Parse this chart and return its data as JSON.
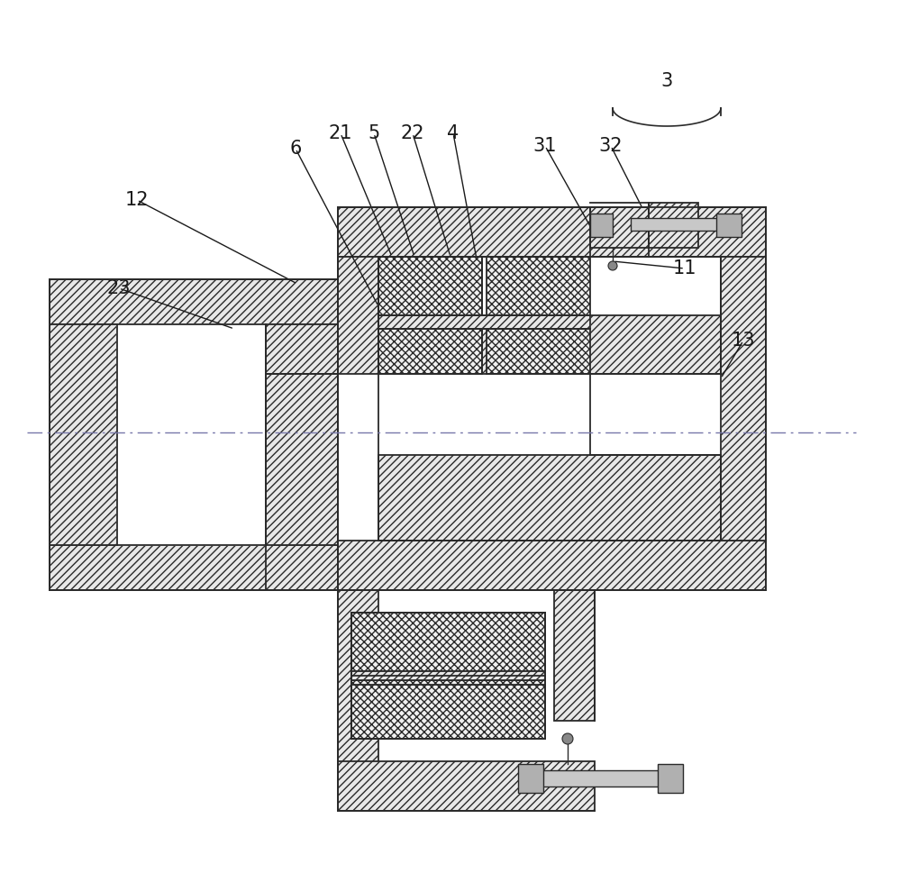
{
  "bg": "#ffffff",
  "lc": "#2a2a2a",
  "lw": 1.3,
  "figsize": [
    10.0,
    9.69
  ],
  "dpi": 100,
  "hatch_diag": "////",
  "hatch_cross": "xxxx",
  "hatch_fc": "#e8e8e8",
  "cross_fc": "#f0f0f0"
}
